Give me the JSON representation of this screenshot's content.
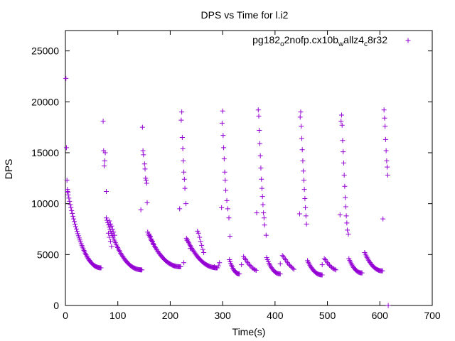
{
  "chart_data": {
    "type": "scatter",
    "title": "DPS vs Time for l.i2",
    "xlabel": "Time(s)",
    "ylabel": "DPS",
    "xlim": [
      0,
      700
    ],
    "ylim": [
      0,
      27000
    ],
    "x_ticks": [
      0,
      100,
      200,
      300,
      400,
      500,
      600,
      700
    ],
    "y_ticks": [
      0,
      5000,
      10000,
      15000,
      20000,
      25000
    ],
    "grid": false,
    "legend_position": "top-right",
    "marker": "plus",
    "series": [
      {
        "name_parts": [
          {
            "text": "pg182",
            "sub": false
          },
          {
            "text": "o",
            "sub": true
          },
          {
            "text": "2nofp.cx10b",
            "sub": false
          },
          {
            "text": "w",
            "sub": true
          },
          {
            "text": "allz4",
            "sub": false
          },
          {
            "text": "c",
            "sub": true
          },
          {
            "text": "8r32",
            "sub": false
          }
        ],
        "color": "#9400d3",
        "cycles": [
          {
            "spike": [
              [
                1,
                22300
              ],
              [
                2,
                15500
              ],
              [
                3,
                12300
              ],
              [
                4,
                11400
              ],
              [
                5,
                11100
              ]
            ],
            "decay": {
              "t0": 4,
              "t1": 68,
              "y0": 11200,
              "y1": 3700,
              "n": 50
            }
          },
          {
            "spike": [
              [
                72,
                18100
              ],
              [
                73,
                15200
              ],
              [
                74,
                13700
              ],
              [
                75,
                14200
              ],
              [
                76,
                15000
              ],
              [
                78,
                11200
              ]
            ],
            "decay": {
              "t0": 78,
              "t1": 146,
              "y0": 8600,
              "y1": 3500,
              "n": 48
            }
          },
          {
            "spike": [
              [
                147,
                17500
              ],
              [
                148,
                15200
              ],
              [
                149,
                14800
              ],
              [
                151,
                13900
              ],
              [
                152,
                13400
              ],
              [
                153,
                12500
              ],
              [
                154,
                12300
              ],
              [
                155,
                12000
              ],
              [
                156,
                10100
              ],
              [
                144,
                9400
              ]
            ],
            "decay": {
              "t0": 157,
              "t1": 220,
              "y0": 7200,
              "y1": 3800,
              "n": 44
            }
          },
          {
            "spike": [
              [
                222,
                19000
              ],
              [
                221,
                18200
              ],
              [
                223,
                16500
              ],
              [
                224,
                15400
              ],
              [
                225,
                14200
              ],
              [
                226,
                13100
              ],
              [
                227,
                12400
              ],
              [
                228,
                11500
              ],
              [
                230,
                10000
              ],
              [
                218,
                9500
              ]
            ],
            "decay": {
              "t0": 231,
              "t1": 290,
              "y0": 6600,
              "y1": 3700,
              "n": 42
            }
          },
          {
            "spike": [
              [
                300,
                19100
              ],
              [
                299,
                17900
              ],
              [
                301,
                16700
              ],
              [
                302,
                15500
              ],
              [
                303,
                14400
              ],
              [
                304,
                13100
              ],
              [
                305,
                12300
              ],
              [
                306,
                11300
              ],
              [
                308,
                10300
              ],
              [
                310,
                9500
              ],
              [
                312,
                8600
              ],
              [
                314,
                6800
              ],
              [
                298,
                9600
              ]
            ],
            "decay": {
              "t0": 313,
              "t1": 332,
              "y0": 4500,
              "y1": 3100,
              "n": 16
            }
          },
          {
            "spike": [
              [
                368,
                19200
              ],
              [
                369,
                18600
              ],
              [
                370,
                17200
              ],
              [
                371,
                15900
              ],
              [
                372,
                14700
              ],
              [
                373,
                13500
              ],
              [
                374,
                12400
              ],
              [
                375,
                11500
              ],
              [
                376,
                10700
              ],
              [
                377,
                9900
              ],
              [
                378,
                9100
              ],
              [
                379,
                8600
              ],
              [
                380,
                7900
              ],
              [
                383,
                6900
              ],
              [
                365,
                9100
              ]
            ],
            "decay": {
              "t0": 384,
              "t1": 410,
              "y0": 4700,
              "y1": 3100,
              "n": 18
            }
          },
          {
            "spike": [
              [
                449,
                19000
              ],
              [
                448,
                18500
              ],
              [
                450,
                17600
              ],
              [
                451,
                16400
              ],
              [
                452,
                15300
              ],
              [
                453,
                14200
              ],
              [
                454,
                13200
              ],
              [
                455,
                12300
              ],
              [
                456,
                11400
              ],
              [
                457,
                10500
              ],
              [
                458,
                9600
              ],
              [
                459,
                8800
              ],
              [
                460,
                8000
              ],
              [
                447,
                9000
              ]
            ],
            "decay": {
              "t0": 462,
              "t1": 490,
              "y0": 4400,
              "y1": 3000,
              "n": 20
            }
          },
          {
            "spike": [
              [
                527,
                18700
              ],
              [
                526,
                18100
              ],
              [
                528,
                17700
              ],
              [
                529,
                16200
              ],
              [
                530,
                15100
              ],
              [
                531,
                14000
              ],
              [
                532,
                12800
              ],
              [
                533,
                11700
              ],
              [
                534,
                10600
              ],
              [
                535,
                9700
              ],
              [
                536,
                8800
              ],
              [
                537,
                8100
              ],
              [
                538,
                7400
              ],
              [
                540,
                7000
              ],
              [
                524,
                8900
              ]
            ],
            "decay": {
              "t0": 541,
              "t1": 566,
              "y0": 4600,
              "y1": 3200,
              "n": 18
            }
          },
          {
            "spike": [
              [
                608,
                19200
              ],
              [
                609,
                18400
              ],
              [
                610,
                17600
              ],
              [
                611,
                16300
              ],
              [
                612,
                15200
              ],
              [
                613,
                14200
              ],
              [
                614,
                13600
              ],
              [
                615,
                12800
              ],
              [
                616,
                0
              ],
              [
                606,
                8500
              ]
            ],
            "decay": {
              "t0": 571,
              "t1": 605,
              "y0": 5200,
              "y1": 3400,
              "n": 24
            }
          }
        ],
        "extra_points": [
          [
            340,
            4800
          ],
          [
            342,
            4650
          ],
          [
            344,
            4500
          ],
          [
            346,
            4350
          ],
          [
            348,
            4200
          ],
          [
            350,
            4050
          ],
          [
            352,
            3950
          ],
          [
            354,
            3850
          ],
          [
            356,
            3700
          ],
          [
            358,
            3650
          ],
          [
            360,
            3550
          ],
          [
            362,
            3500
          ],
          [
            364,
            3450
          ],
          [
            336,
            4000
          ],
          [
            414,
            4900
          ],
          [
            416,
            4800
          ],
          [
            418,
            4650
          ],
          [
            420,
            4500
          ],
          [
            422,
            4350
          ],
          [
            424,
            4200
          ],
          [
            426,
            4050
          ],
          [
            428,
            3950
          ],
          [
            430,
            3850
          ],
          [
            432,
            3750
          ],
          [
            434,
            3650
          ],
          [
            436,
            3550
          ],
          [
            410,
            4100
          ],
          [
            494,
            4600
          ],
          [
            496,
            4500
          ],
          [
            498,
            4350
          ],
          [
            500,
            4200
          ],
          [
            502,
            4050
          ],
          [
            504,
            3950
          ],
          [
            506,
            3850
          ],
          [
            508,
            3750
          ],
          [
            510,
            3650
          ],
          [
            512,
            3600
          ],
          [
            514,
            3550
          ],
          [
            516,
            3500
          ],
          [
            490,
            4000
          ],
          [
            294,
            4200
          ],
          [
            292,
            3900
          ],
          [
            288,
            3700
          ],
          [
            284,
            3800
          ],
          [
            226,
            4200
          ],
          [
            232,
            6400
          ],
          [
            238,
            5600
          ],
          [
            252,
            7300
          ],
          [
            254,
            7100
          ],
          [
            256,
            6700
          ],
          [
            258,
            6300
          ],
          [
            260,
            5900
          ],
          [
            262,
            5500
          ],
          [
            264,
            5200
          ],
          [
            160,
            7000
          ],
          [
            162,
            6800
          ],
          [
            164,
            6500
          ],
          [
            166,
            6300
          ],
          [
            168,
            6000
          ],
          [
            84,
            8300
          ],
          [
            86,
            8000
          ],
          [
            88,
            7800
          ],
          [
            90,
            7500
          ],
          [
            92,
            7200
          ],
          [
            94,
            6900
          ],
          [
            88,
            5800
          ],
          [
            86,
            6300
          ],
          [
            84,
            6700
          ],
          [
            82,
            7100
          ]
        ]
      }
    ]
  }
}
